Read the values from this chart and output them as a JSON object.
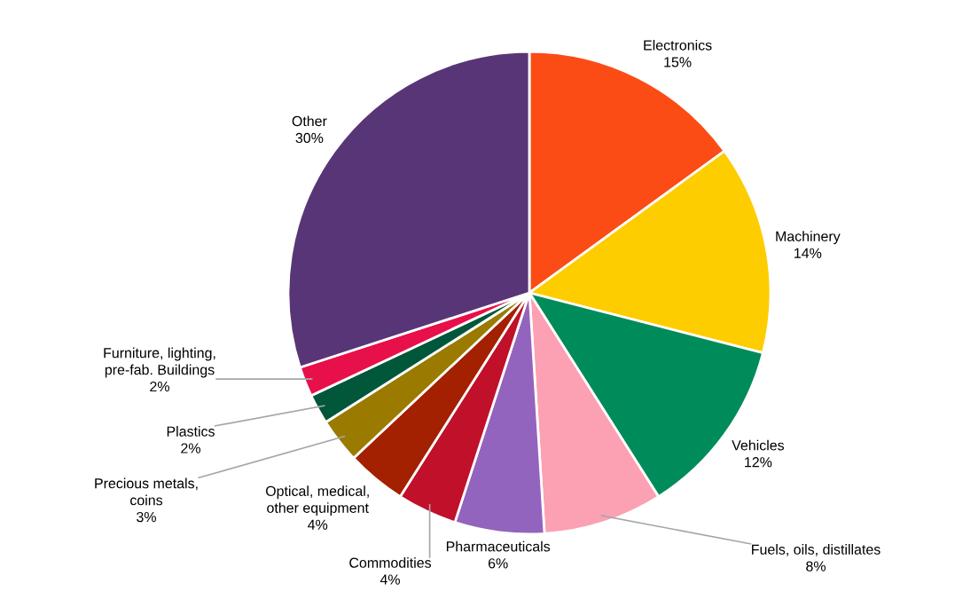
{
  "chart_data": {
    "type": "pie",
    "categories": [
      "Electronics",
      "Machinery",
      "Vehicles",
      "Fuels, oils, distillates",
      "Pharmaceuticals",
      "Commodities",
      "Optical, medical,\nother equipment",
      "Precious metals,\ncoins",
      "Plastics",
      "Furniture, lighting,\npre-fab. Buildings",
      "Other"
    ],
    "values": [
      15,
      14,
      12,
      8,
      6,
      4,
      4,
      3,
      2,
      2,
      30
    ],
    "value_labels": [
      "15%",
      "14%",
      "12%",
      "8%",
      "6%",
      "4%",
      "4%",
      "3%",
      "2%",
      "2%",
      "30%"
    ],
    "colors": [
      "#fc4c15",
      "#fdcd00",
      "#008c5a",
      "#fca0b4",
      "#9364bd",
      "#c0102a",
      "#a32000",
      "#9a7b00",
      "#00573a",
      "#e8104a",
      "#583577"
    ],
    "legend": false
  }
}
